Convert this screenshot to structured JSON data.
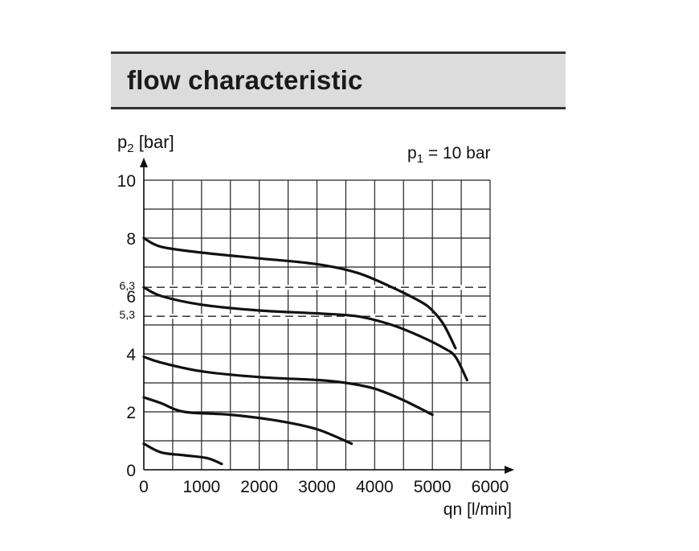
{
  "header": {
    "title": "flow characteristic"
  },
  "chart_data": {
    "type": "line",
    "title": "flow characteristic",
    "annotation": {
      "prefix": "p",
      "sub": "1",
      "suffix": " = 10 bar"
    },
    "ylabel": {
      "prefix": "p",
      "sub": "2",
      "suffix": " [bar]"
    },
    "xlabel": "qn [l/min]",
    "xlim": [
      0,
      6000
    ],
    "ylim": [
      0,
      10
    ],
    "x_ticks": [
      0,
      1000,
      2000,
      3000,
      4000,
      5000,
      6000
    ],
    "x_tick_labels": [
      "0",
      "1000",
      "2000",
      "3000",
      "4000",
      "5000",
      "6000"
    ],
    "y_ticks": [
      0,
      2,
      4,
      6,
      8,
      10
    ],
    "y_tick_labels": [
      "0",
      "2",
      "4",
      "6",
      "8",
      "10"
    ],
    "ref_lines": [
      {
        "value": 6.3,
        "label": "6,3"
      },
      {
        "value": 5.3,
        "label": "5,3"
      }
    ],
    "grid": true,
    "series": [
      {
        "x": [
          0,
          300,
          1000,
          2000,
          3000,
          3700,
          4300,
          4800,
          5000,
          5200,
          5400
        ],
        "y": [
          8.0,
          7.7,
          7.5,
          7.3,
          7.1,
          6.8,
          6.3,
          5.8,
          5.5,
          5.0,
          4.2
        ]
      },
      {
        "x": [
          0,
          300,
          1000,
          2000,
          3000,
          3700,
          4300,
          4800,
          5200,
          5400,
          5600
        ],
        "y": [
          6.3,
          6.0,
          5.7,
          5.5,
          5.4,
          5.3,
          5.0,
          4.6,
          4.2,
          3.9,
          3.1
        ]
      },
      {
        "x": [
          0,
          300,
          1000,
          2000,
          3000,
          3500,
          4000,
          4500,
          5000
        ],
        "y": [
          3.9,
          3.7,
          3.4,
          3.2,
          3.1,
          3.0,
          2.8,
          2.4,
          1.9
        ]
      },
      {
        "x": [
          0,
          300,
          700,
          1500,
          2300,
          3000,
          3600
        ],
        "y": [
          2.5,
          2.3,
          2.0,
          1.9,
          1.7,
          1.4,
          0.9
        ]
      },
      {
        "x": [
          0,
          300,
          700,
          1100,
          1350
        ],
        "y": [
          0.9,
          0.6,
          0.5,
          0.4,
          0.2
        ]
      }
    ]
  }
}
